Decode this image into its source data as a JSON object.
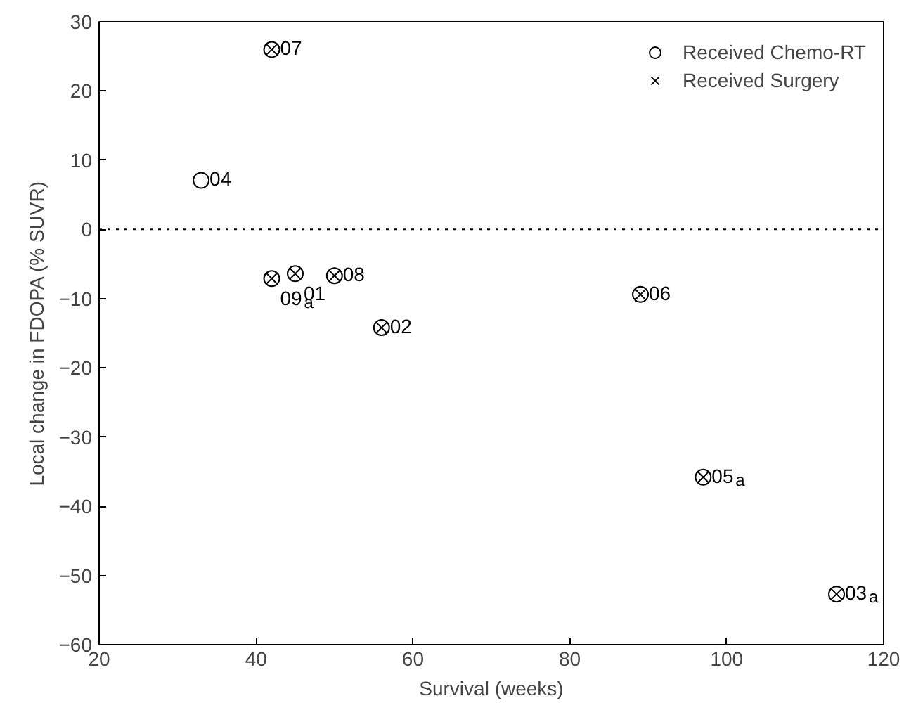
{
  "chart_data": {
    "type": "scatter",
    "xlabel": "Survival (weeks)",
    "ylabel": "Local change in FDOPA (% SUVR)",
    "xlim": [
      20,
      120
    ],
    "ylim": [
      -60,
      30
    ],
    "xticks": [
      20,
      40,
      60,
      80,
      100,
      120
    ],
    "yticks": [
      -60,
      -50,
      -40,
      -30,
      -20,
      -10,
      0,
      10,
      20,
      30
    ],
    "grid": false,
    "legend": "top right",
    "series": [
      {
        "name": "Received Chemo-RT",
        "color": "#000000",
        "marker": "circle",
        "x": [
          42,
          33,
          42,
          45,
          50,
          56,
          89,
          97,
          114
        ],
        "values": [
          26,
          7.1,
          -7.1,
          -6.4,
          -6.7,
          -14.2,
          -9.4,
          -35.8,
          -52.7
        ]
      },
      {
        "name": "Received Surgery",
        "color": "#000000",
        "marker": "cross",
        "x": [
          42,
          42,
          45,
          50,
          56,
          89,
          97,
          114
        ],
        "values": [
          26,
          -7.1,
          -6.4,
          -6.7,
          -14.2,
          -9.4,
          -35.8,
          -52.7
        ]
      }
    ],
    "ref_lines": [
      {
        "axis": "y",
        "value": 0,
        "line_style": "dotted",
        "color": "#000000"
      }
    ],
    "annotations": [
      {
        "text": "07",
        "x": 42,
        "y": 26
      },
      {
        "text": "04",
        "x": 33,
        "y": 7.1
      },
      {
        "text": "09$_{a}$",
        "x": 42,
        "y": -7.1
      },
      {
        "text": "01",
        "x": 45,
        "y": -6.4
      },
      {
        "text": "08",
        "x": 50,
        "y": -6.7
      },
      {
        "text": "02",
        "x": 56,
        "y": -14.2
      },
      {
        "text": "06",
        "x": 89,
        "y": -9.4
      },
      {
        "text": "05$_{a}$",
        "x": 97,
        "y": -35.8
      },
      {
        "text": "03$_{a}$",
        "x": 114,
        "y": -52.7
      }
    ]
  }
}
